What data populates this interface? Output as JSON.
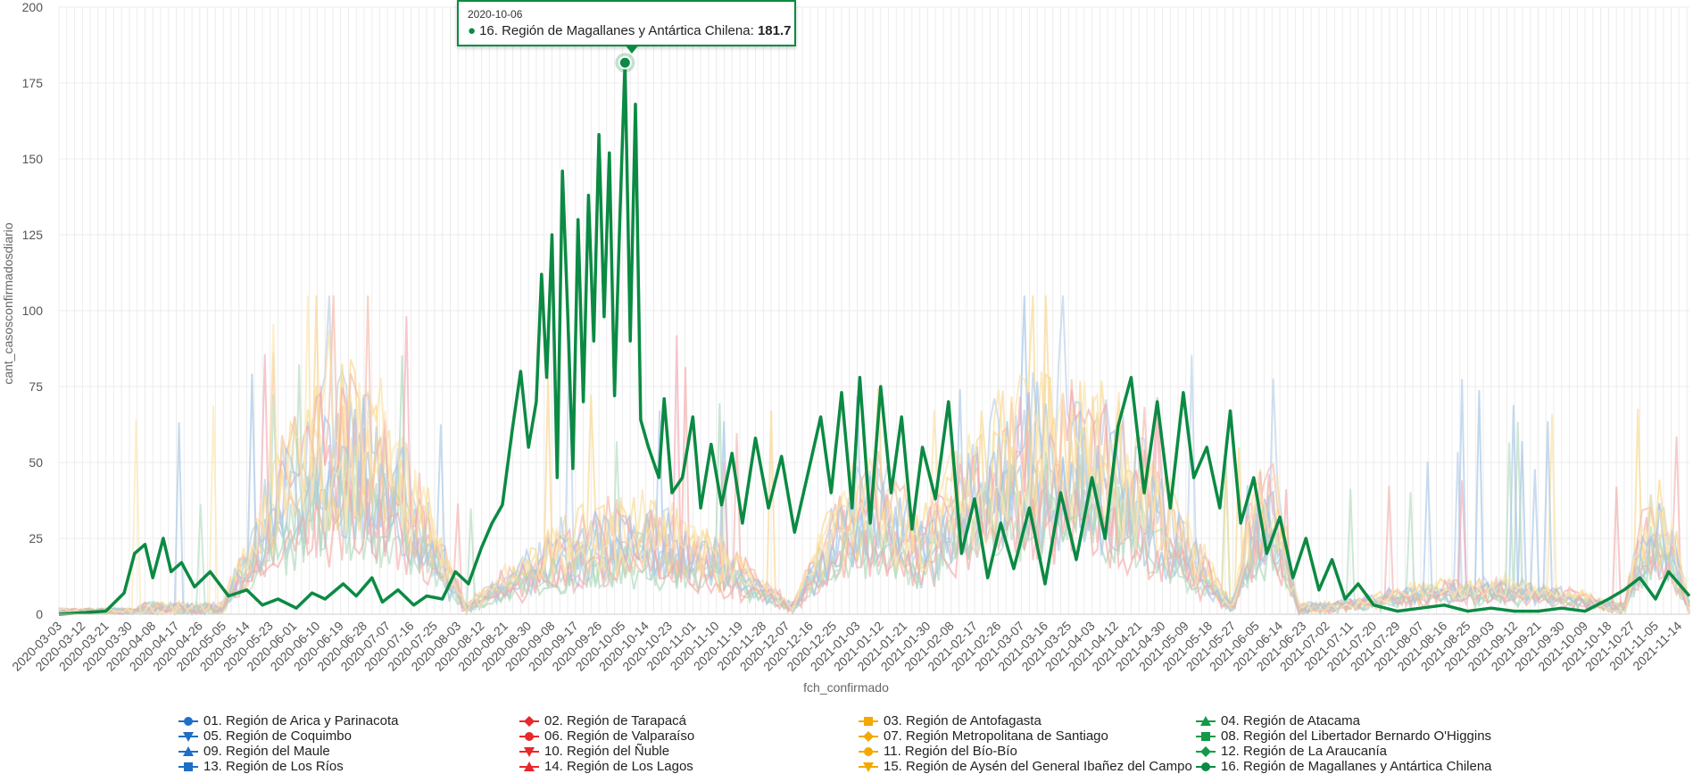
{
  "chart_data": {
    "type": "line",
    "ylabel": "cant_casosconfirmadosdiario",
    "xlabel": "fch_confirmado",
    "ylim": [
      0,
      200
    ],
    "y_ticks": [
      0,
      25,
      50,
      75,
      100,
      125,
      150,
      175,
      200
    ],
    "x_ticks": [
      "2020-03-03",
      "2020-03-12",
      "2020-03-21",
      "2020-03-30",
      "2020-04-08",
      "2020-04-17",
      "2020-04-26",
      "2020-05-05",
      "2020-05-14",
      "2020-05-23",
      "2020-06-01",
      "2020-06-10",
      "2020-06-19",
      "2020-06-28",
      "2020-07-07",
      "2020-07-16",
      "2020-07-25",
      "2020-08-03",
      "2020-08-12",
      "2020-08-21",
      "2020-08-30",
      "2020-09-08",
      "2020-09-17",
      "2020-09-26",
      "2020-10-05",
      "2020-10-14",
      "2020-10-23",
      "2020-11-01",
      "2020-11-10",
      "2020-11-19",
      "2020-11-28",
      "2020-12-07",
      "2020-12-16",
      "2020-12-25",
      "2021-01-03",
      "2021-01-12",
      "2021-01-21",
      "2021-01-30",
      "2021-02-08",
      "2021-02-17",
      "2021-02-26",
      "2021-03-07",
      "2021-03-16",
      "2021-03-25",
      "2021-04-03",
      "2021-04-12",
      "2021-04-21",
      "2021-04-30",
      "2021-05-09",
      "2021-05-18",
      "2021-05-27",
      "2021-06-05",
      "2021-06-14",
      "2021-06-23",
      "2021-07-02",
      "2021-07-11",
      "2021-07-20",
      "2021-07-29",
      "2021-08-07",
      "2021-08-16",
      "2021-08-25",
      "2021-09-03",
      "2021-09-12",
      "2021-09-21",
      "2021-09-30",
      "2021-10-09",
      "2021-10-18",
      "2021-10-27",
      "2021-11-05",
      "2021-11-14"
    ],
    "grid": true,
    "legend_position": "bottom",
    "highlight_series": "16. Región de Magallanes y Antártica Chilena",
    "series": [
      {
        "name": "01. Región de Arica y Parinacota",
        "color": "#1f6fc5",
        "marker": "circle"
      },
      {
        "name": "02. Región de Tarapacá",
        "color": "#e8282a",
        "marker": "diamond"
      },
      {
        "name": "03. Región de Antofagasta",
        "color": "#f2a900",
        "marker": "square"
      },
      {
        "name": "04. Región de Atacama",
        "color": "#139a48",
        "marker": "triangle"
      },
      {
        "name": "05. Región de Coquimbo",
        "color": "#1f6fc5",
        "marker": "triangle-down"
      },
      {
        "name": "06. Región de Valparaíso",
        "color": "#e8282a",
        "marker": "circle"
      },
      {
        "name": "07. Región Metropolitana de Santiago",
        "color": "#f2a900",
        "marker": "diamond"
      },
      {
        "name": "08. Región del Libertador Bernardo O'Higgins",
        "color": "#139a48",
        "marker": "square"
      },
      {
        "name": "09. Región del Maule",
        "color": "#1f6fc5",
        "marker": "triangle"
      },
      {
        "name": "10. Región del Ñuble",
        "color": "#e8282a",
        "marker": "triangle-down"
      },
      {
        "name": "11. Región del Bío-Bío",
        "color": "#f2a900",
        "marker": "circle"
      },
      {
        "name": "12. Región de La Araucanía",
        "color": "#139a48",
        "marker": "diamond"
      },
      {
        "name": "13. Región de Los Ríos",
        "color": "#1f6fc5",
        "marker": "square"
      },
      {
        "name": "14. Región de Los Lagos",
        "color": "#e8282a",
        "marker": "triangle"
      },
      {
        "name": "15. Región de Aysén del General Ibañez del Campo",
        "color": "#f2a900",
        "marker": "triangle-down"
      },
      {
        "name": "16. Región de Magallanes y Antártica Chilena",
        "color": "#0b8a43",
        "marker": "circle",
        "points": [
          [
            "2020-03-03",
            0
          ],
          [
            "2020-03-21",
            1
          ],
          [
            "2020-03-28",
            7
          ],
          [
            "2020-04-01",
            20
          ],
          [
            "2020-04-05",
            23
          ],
          [
            "2020-04-08",
            12
          ],
          [
            "2020-04-12",
            25
          ],
          [
            "2020-04-15",
            14
          ],
          [
            "2020-04-19",
            17
          ],
          [
            "2020-04-24",
            9
          ],
          [
            "2020-04-30",
            14
          ],
          [
            "2020-05-07",
            6
          ],
          [
            "2020-05-14",
            8
          ],
          [
            "2020-05-20",
            3
          ],
          [
            "2020-05-26",
            5
          ],
          [
            "2020-06-02",
            2
          ],
          [
            "2020-06-08",
            7
          ],
          [
            "2020-06-13",
            5
          ],
          [
            "2020-06-20",
            10
          ],
          [
            "2020-06-25",
            6
          ],
          [
            "2020-07-01",
            12
          ],
          [
            "2020-07-05",
            4
          ],
          [
            "2020-07-11",
            8
          ],
          [
            "2020-07-17",
            3
          ],
          [
            "2020-07-22",
            6
          ],
          [
            "2020-07-28",
            5
          ],
          [
            "2020-08-02",
            14
          ],
          [
            "2020-08-07",
            10
          ],
          [
            "2020-08-12",
            22
          ],
          [
            "2020-08-16",
            30
          ],
          [
            "2020-08-20",
            36
          ],
          [
            "2020-08-24",
            62
          ],
          [
            "2020-08-27",
            80
          ],
          [
            "2020-08-30",
            55
          ],
          [
            "2020-09-02",
            70
          ],
          [
            "2020-09-04",
            112
          ],
          [
            "2020-09-06",
            78
          ],
          [
            "2020-09-08",
            125
          ],
          [
            "2020-09-10",
            45
          ],
          [
            "2020-09-12",
            146
          ],
          [
            "2020-09-14",
            100
          ],
          [
            "2020-09-16",
            48
          ],
          [
            "2020-09-18",
            130
          ],
          [
            "2020-09-20",
            70
          ],
          [
            "2020-09-22",
            138
          ],
          [
            "2020-09-24",
            90
          ],
          [
            "2020-09-26",
            158
          ],
          [
            "2020-09-28",
            98
          ],
          [
            "2020-09-30",
            152
          ],
          [
            "2020-10-02",
            72
          ],
          [
            "2020-10-04",
            130
          ],
          [
            "2020-10-06",
            181.7
          ],
          [
            "2020-10-08",
            90
          ],
          [
            "2020-10-10",
            168
          ],
          [
            "2020-10-12",
            64
          ],
          [
            "2020-10-15",
            55
          ],
          [
            "2020-10-19",
            45
          ],
          [
            "2020-10-21",
            71
          ],
          [
            "2020-10-24",
            40
          ],
          [
            "2020-10-28",
            45
          ],
          [
            "2020-11-01",
            65
          ],
          [
            "2020-11-04",
            35
          ],
          [
            "2020-11-08",
            56
          ],
          [
            "2020-11-12",
            36
          ],
          [
            "2020-11-16",
            53
          ],
          [
            "2020-11-20",
            30
          ],
          [
            "2020-11-25",
            58
          ],
          [
            "2020-11-30",
            35
          ],
          [
            "2020-12-05",
            52
          ],
          [
            "2020-12-10",
            27
          ],
          [
            "2020-12-15",
            46
          ],
          [
            "2020-12-20",
            65
          ],
          [
            "2020-12-24",
            40
          ],
          [
            "2020-12-28",
            73
          ],
          [
            "2021-01-01",
            35
          ],
          [
            "2021-01-04",
            78
          ],
          [
            "2021-01-08",
            30
          ],
          [
            "2021-01-12",
            75
          ],
          [
            "2021-01-16",
            40
          ],
          [
            "2021-01-20",
            65
          ],
          [
            "2021-01-24",
            28
          ],
          [
            "2021-01-28",
            55
          ],
          [
            "2021-02-02",
            38
          ],
          [
            "2021-02-07",
            70
          ],
          [
            "2021-02-12",
            20
          ],
          [
            "2021-02-17",
            38
          ],
          [
            "2021-02-22",
            12
          ],
          [
            "2021-02-27",
            30
          ],
          [
            "2021-03-04",
            15
          ],
          [
            "2021-03-10",
            35
          ],
          [
            "2021-03-16",
            10
          ],
          [
            "2021-03-22",
            40
          ],
          [
            "2021-03-28",
            18
          ],
          [
            "2021-04-03",
            45
          ],
          [
            "2021-04-08",
            25
          ],
          [
            "2021-04-13",
            62
          ],
          [
            "2021-04-18",
            78
          ],
          [
            "2021-04-23",
            40
          ],
          [
            "2021-04-28",
            70
          ],
          [
            "2021-05-03",
            35
          ],
          [
            "2021-05-08",
            73
          ],
          [
            "2021-05-12",
            45
          ],
          [
            "2021-05-17",
            55
          ],
          [
            "2021-05-22",
            35
          ],
          [
            "2021-05-26",
            67
          ],
          [
            "2021-05-30",
            30
          ],
          [
            "2021-06-04",
            45
          ],
          [
            "2021-06-09",
            20
          ],
          [
            "2021-06-14",
            32
          ],
          [
            "2021-06-19",
            12
          ],
          [
            "2021-06-24",
            25
          ],
          [
            "2021-06-29",
            8
          ],
          [
            "2021-07-04",
            18
          ],
          [
            "2021-07-09",
            5
          ],
          [
            "2021-07-14",
            10
          ],
          [
            "2021-07-20",
            3
          ],
          [
            "2021-07-29",
            1
          ],
          [
            "2021-08-07",
            2
          ],
          [
            "2021-08-16",
            3
          ],
          [
            "2021-08-25",
            1
          ],
          [
            "2021-09-03",
            2
          ],
          [
            "2021-09-12",
            1
          ],
          [
            "2021-09-21",
            1
          ],
          [
            "2021-09-30",
            2
          ],
          [
            "2021-10-09",
            1
          ],
          [
            "2021-10-18",
            5
          ],
          [
            "2021-10-24",
            8
          ],
          [
            "2021-10-30",
            12
          ],
          [
            "2021-11-05",
            5
          ],
          [
            "2021-11-10",
            14
          ],
          [
            "2021-11-14",
            10
          ],
          [
            "2021-11-18",
            6
          ]
        ]
      }
    ]
  },
  "tooltip": {
    "date": "2020-10-06",
    "series": "16. Región de Magallanes y Antártica Chilena",
    "value": "181.7"
  }
}
